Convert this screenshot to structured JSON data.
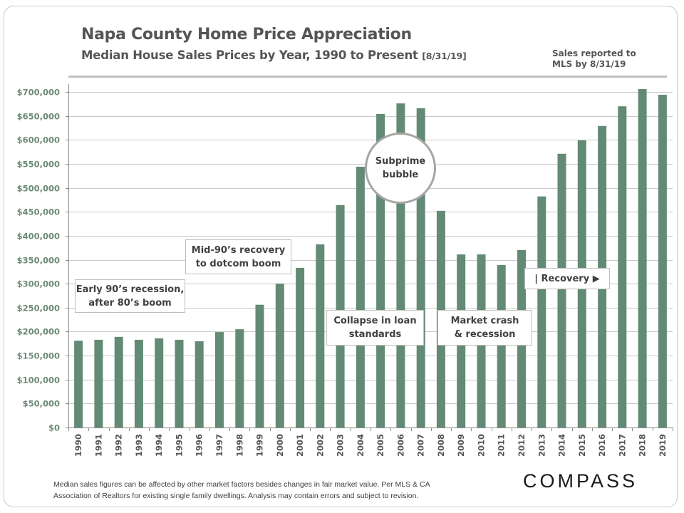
{
  "header": {
    "title": "Napa County Home Price Appreciation",
    "subtitle": "Median House Sales Prices by Year, 1990 to Present",
    "subtitle_date": "[8/31/19]",
    "note_line1": "Sales reported to",
    "note_line2": "MLS by 8/31/19"
  },
  "annotations": {
    "early90s_line1": "Early 90’s recession,",
    "early90s_line2": "after 80’s boom",
    "mid90s_line1": "Mid-90’s recovery",
    "mid90s_line2": "to dotcom boom",
    "subprime_line1": "Subprime",
    "subprime_line2": "bubble",
    "collapse_line1": "Collapse in loan",
    "collapse_line2": "standards",
    "crash_line1": "Market crash",
    "crash_line2": "& recession",
    "recovery": "| Recovery ▶"
  },
  "footer": {
    "disclaimer_line1": "Median sales figures can be affected by other market factors besides changes in fair market value. Per MLS & CA",
    "disclaimer_line2": "Association of Realtors for existing single family dwellings. Analysis  may contain  errors and subject to revision.",
    "logo": "COMPASS"
  },
  "colors": {
    "bar": "#638a74",
    "axis_label": "#6b8a78",
    "grid": "#c8c8c8",
    "text": "#555555"
  },
  "chart_data": {
    "type": "bar",
    "title": "Napa County Home Price Appreciation",
    "subtitle": "Median House Sales Prices by Year, 1990 to Present [8/31/19]",
    "xlabel": "",
    "ylabel": "",
    "ylim": [
      0,
      700000
    ],
    "yticks": [
      0,
      50000,
      100000,
      150000,
      200000,
      250000,
      300000,
      350000,
      400000,
      450000,
      500000,
      550000,
      600000,
      650000,
      700000
    ],
    "ytick_labels": [
      "$0",
      "$50,000",
      "$100,000",
      "$150,000",
      "$200,000",
      "$250,000",
      "$300,000",
      "$350,000",
      "$400,000",
      "$450,000",
      "$500,000",
      "$550,000",
      "$600,000",
      "$650,000",
      "$700,000"
    ],
    "grid": true,
    "legend": "none",
    "categories": [
      "1990",
      "1991",
      "1992",
      "1993",
      "1994",
      "1995",
      "1996",
      "1997",
      "1998",
      "1999",
      "2000",
      "2001",
      "2002",
      "2003",
      "2004",
      "2005",
      "2006",
      "2007",
      "2008",
      "2009",
      "2010",
      "2011",
      "2012",
      "2013",
      "2014",
      "2015",
      "2016",
      "2017",
      "2018",
      "2019"
    ],
    "series": [
      {
        "name": "Median House Sales Price",
        "values": [
          181000,
          183000,
          189000,
          183000,
          186000,
          183000,
          180000,
          199000,
          205000,
          256000,
          300000,
          333000,
          382000,
          464000,
          544000,
          654000,
          676000,
          666000,
          452000,
          361000,
          361000,
          339000,
          370000,
          482000,
          571000,
          599000,
          629000,
          670000,
          706000,
          694000
        ]
      }
    ]
  }
}
